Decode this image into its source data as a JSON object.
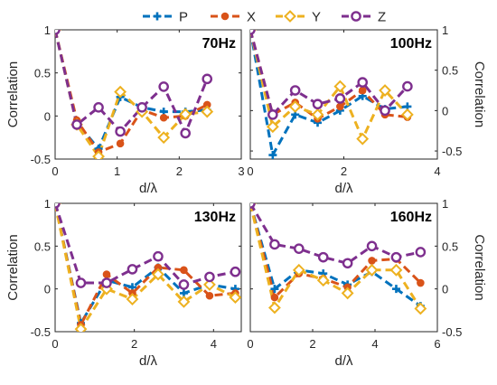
{
  "legend": {
    "items": [
      {
        "name": "P",
        "color": "#0072BD",
        "marker": "plus"
      },
      {
        "name": "X",
        "color": "#D95319",
        "marker": "dot"
      },
      {
        "name": "Y",
        "color": "#EDB120",
        "marker": "diamond"
      },
      {
        "name": "Z",
        "color": "#7E2F8E",
        "marker": "circle"
      }
    ]
  },
  "chart_data": [
    {
      "type": "line",
      "title": "70Hz",
      "xlabel": "d/λ",
      "ylabel": "Correlation",
      "ylabel_side": "left",
      "xlim": [
        0,
        3
      ],
      "ylim": [
        -0.5,
        1
      ],
      "xticks": [
        0,
        1,
        2,
        3
      ],
      "xtick_labels": [
        "0",
        "1",
        "2",
        "3"
      ],
      "yticks": [
        -0.5,
        0,
        0.5,
        1
      ],
      "ytick_labels": [
        "-0.5",
        "0",
        "0.5",
        "1"
      ],
      "grid": false,
      "series": [
        {
          "name": "P",
          "x": [
            0,
            0.35,
            0.7,
            1.05,
            1.4,
            1.75,
            2.1,
            2.45
          ],
          "y": [
            1,
            -0.08,
            -0.38,
            0.22,
            0.1,
            0.05,
            0.05,
            0.07
          ]
        },
        {
          "name": "X",
          "x": [
            0,
            0.35,
            0.7,
            1.05,
            1.4,
            1.75,
            2.1,
            2.45
          ],
          "y": [
            1,
            -0.05,
            -0.42,
            -0.32,
            0.07,
            -0.02,
            0.0,
            0.13
          ]
        },
        {
          "name": "Y",
          "x": [
            0,
            0.35,
            0.7,
            1.05,
            1.4,
            1.75,
            2.1,
            2.45
          ],
          "y": [
            1,
            -0.1,
            -0.47,
            0.28,
            0.05,
            -0.25,
            0.02,
            0.05
          ]
        },
        {
          "name": "Z",
          "x": [
            0,
            0.35,
            0.7,
            1.05,
            1.4,
            1.75,
            2.1,
            2.45
          ],
          "y": [
            1,
            -0.1,
            0.1,
            -0.18,
            0.1,
            0.34,
            -0.2,
            0.43
          ]
        }
      ]
    },
    {
      "type": "line",
      "title": "100Hz",
      "xlabel": "d/λ",
      "ylabel": "Correlation",
      "ylabel_side": "right",
      "xlim": [
        0,
        4
      ],
      "ylim": [
        -0.6,
        1
      ],
      "xticks": [
        0,
        2,
        4
      ],
      "xtick_labels": [
        "0",
        "2",
        "4"
      ],
      "yticks": [
        -0.5,
        0,
        0.5,
        1
      ],
      "ytick_labels": [
        "-0.5",
        "0",
        "0.5",
        "1"
      ],
      "grid": false,
      "series": [
        {
          "name": "P",
          "x": [
            0,
            0.48,
            0.96,
            1.44,
            1.92,
            2.4,
            2.88,
            3.36
          ],
          "y": [
            1,
            -0.55,
            -0.05,
            -0.15,
            0.0,
            0.18,
            0.02,
            0.05
          ]
        },
        {
          "name": "X",
          "x": [
            0,
            0.48,
            0.96,
            1.44,
            1.92,
            2.4,
            2.88,
            3.36
          ],
          "y": [
            1,
            -0.05,
            0.1,
            -0.1,
            0.05,
            0.25,
            -0.05,
            -0.08
          ]
        },
        {
          "name": "Y",
          "x": [
            0,
            0.48,
            0.96,
            1.44,
            1.92,
            2.4,
            2.88,
            3.36
          ],
          "y": [
            1,
            -0.2,
            0.05,
            -0.05,
            0.3,
            -0.35,
            0.25,
            -0.05
          ]
        },
        {
          "name": "Z",
          "x": [
            0,
            0.48,
            0.96,
            1.44,
            1.92,
            2.4,
            2.88,
            3.36
          ],
          "y": [
            1,
            -0.05,
            0.25,
            0.08,
            0.15,
            0.35,
            0.0,
            0.3
          ]
        }
      ]
    },
    {
      "type": "line",
      "title": "130Hz",
      "xlabel": "d/λ",
      "ylabel": "Correlation",
      "ylabel_side": "left",
      "xlim": [
        0,
        4.7
      ],
      "ylim": [
        -0.5,
        1
      ],
      "xticks": [
        0,
        2,
        4
      ],
      "xtick_labels": [
        "0",
        "2",
        "4"
      ],
      "yticks": [
        -0.5,
        0,
        0.5,
        1
      ],
      "ytick_labels": [
        "-0.5",
        "0",
        "0.5",
        "1"
      ],
      "grid": false,
      "series": [
        {
          "name": "P",
          "x": [
            0,
            0.65,
            1.3,
            1.95,
            2.6,
            3.25,
            3.9,
            4.55
          ],
          "y": [
            1,
            -0.4,
            0.1,
            0.02,
            0.25,
            -0.05,
            0.05,
            0.0
          ]
        },
        {
          "name": "X",
          "x": [
            0,
            0.65,
            1.3,
            1.95,
            2.6,
            3.25,
            3.9,
            4.55
          ],
          "y": [
            1,
            -0.42,
            0.17,
            -0.05,
            0.25,
            0.22,
            -0.08,
            -0.05
          ]
        },
        {
          "name": "Y",
          "x": [
            0,
            0.65,
            1.3,
            1.95,
            2.6,
            3.25,
            3.9,
            4.55
          ],
          "y": [
            1,
            -0.47,
            0.0,
            -0.12,
            0.17,
            -0.15,
            0.05,
            -0.1
          ]
        },
        {
          "name": "Z",
          "x": [
            0,
            0.65,
            1.3,
            1.95,
            2.6,
            3.25,
            3.9,
            4.55
          ],
          "y": [
            1,
            0.07,
            0.07,
            0.23,
            0.38,
            0.05,
            0.14,
            0.2
          ]
        }
      ]
    },
    {
      "type": "line",
      "title": "160Hz",
      "xlabel": "d/λ",
      "ylabel": "Correlation",
      "ylabel_side": "right",
      "xlim": [
        0,
        6
      ],
      "ylim": [
        -0.5,
        1
      ],
      "xticks": [
        0,
        2,
        4,
        6
      ],
      "xtick_labels": [
        "0",
        "2",
        "4",
        "6"
      ],
      "yticks": [
        -0.5,
        0,
        0.5,
        1
      ],
      "ytick_labels": [
        "-0.5",
        "0",
        "0.5",
        "1"
      ],
      "grid": false,
      "series": [
        {
          "name": "P",
          "x": [
            0,
            0.78,
            1.56,
            2.34,
            3.12,
            3.9,
            4.68,
            5.46
          ],
          "y": [
            1,
            0.0,
            0.22,
            0.18,
            0.05,
            0.2,
            0.0,
            -0.2
          ]
        },
        {
          "name": "X",
          "x": [
            0,
            0.78,
            1.56,
            2.34,
            3.12,
            3.9,
            4.68,
            5.46
          ],
          "y": [
            1,
            -0.1,
            0.18,
            0.12,
            0.02,
            0.33,
            0.35,
            0.07
          ]
        },
        {
          "name": "Y",
          "x": [
            0,
            0.78,
            1.56,
            2.34,
            3.12,
            3.9,
            4.68,
            5.46
          ],
          "y": [
            1,
            -0.22,
            0.22,
            0.1,
            -0.05,
            0.22,
            0.22,
            -0.23
          ]
        },
        {
          "name": "Z",
          "x": [
            0,
            0.78,
            1.56,
            2.34,
            3.12,
            3.9,
            4.68,
            5.46
          ],
          "y": [
            1,
            0.52,
            0.47,
            0.37,
            0.3,
            0.5,
            0.37,
            0.43
          ]
        }
      ]
    }
  ]
}
